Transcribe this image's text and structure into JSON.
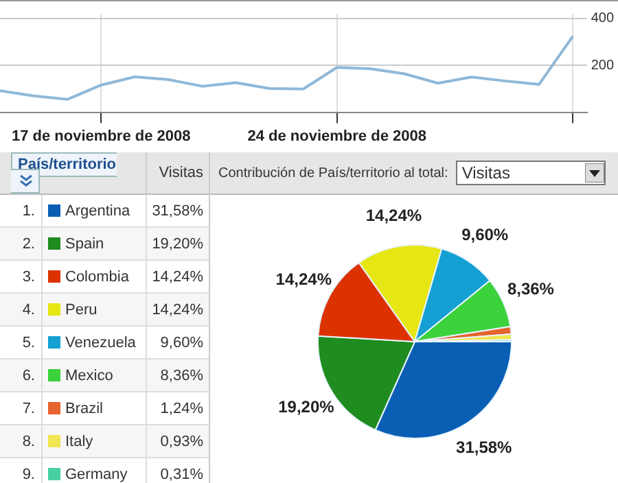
{
  "chart_data": [
    {
      "type": "line",
      "x": [
        "2008-11-14",
        "2008-11-15",
        "2008-11-16",
        "2008-11-17",
        "2008-11-18",
        "2008-11-19",
        "2008-11-20",
        "2008-11-21",
        "2008-11-22",
        "2008-11-23",
        "2008-11-24",
        "2008-11-25",
        "2008-11-26",
        "2008-11-27",
        "2008-11-28",
        "2008-11-29",
        "2008-11-30",
        "2008-12-01"
      ],
      "series": [
        {
          "color": "#8fb8d8",
          "values": [
            92,
            70,
            55,
            116,
            151,
            139,
            111,
            126,
            101,
            99,
            191,
            185,
            164,
            124,
            150,
            133,
            119,
            324
          ]
        }
      ],
      "xlim": [
        "2008-11-14",
        "2008-12-01T10:00"
      ],
      "ylim": [
        0,
        420
      ],
      "xticks": [
        {
          "value": "2008-11-17",
          "label": "17 de noviembre de 2008"
        },
        {
          "value": "2008-11-24",
          "label": "24 de noviembre de 2008"
        },
        {
          "value": "2008-12-01",
          "label": null
        }
      ],
      "yticks": [
        200,
        400
      ],
      "grid": true,
      "legend": false
    },
    {
      "type": "pie",
      "title": "Contribución de País/territorio al total:",
      "legend_title": "País/territorio",
      "legend": "left",
      "value_labels": [
        "31,58%",
        "19,20%",
        "14,24%",
        "14,24%",
        "9,60%",
        "8,36%",
        "1,24%",
        "0,93%",
        "0,31%"
      ],
      "categories": [
        "Argentina",
        "Spain",
        "Colombia",
        "Peru",
        "Venezuela",
        "Mexico",
        "Brazil",
        "Italy",
        "Germany"
      ],
      "values": [
        31.58,
        19.2,
        14.24,
        14.24,
        9.6,
        8.36,
        1.24,
        0.93,
        0.31
      ],
      "colors": [
        "#0a5fb4",
        "#1e8c1e",
        "#dc3200",
        "#e6e614",
        "#14a0d2",
        "#3cd23c",
        "#e6642d",
        "#f0e650",
        "#46d2a0"
      ],
      "annotations": [
        "Visitas",
        "Visitas",
        "1.",
        "2.",
        "3.",
        "4.",
        "5.",
        "6.",
        "7.",
        "8.",
        "9."
      ]
    }
  ]
}
